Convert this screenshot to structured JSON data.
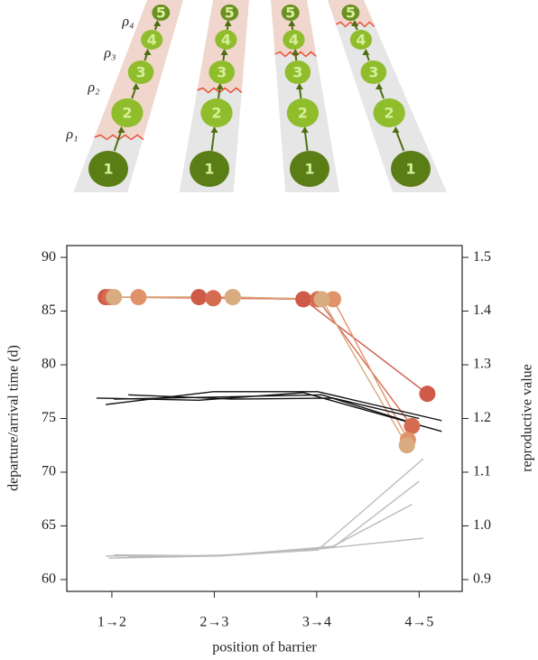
{
  "diagram": {
    "barrier_labels": [
      "ρ₁",
      "ρ₂",
      "ρ₃",
      "ρ₄"
    ],
    "node_labels": [
      "1",
      "2",
      "3",
      "4",
      "5"
    ]
  },
  "chart_data": {
    "type": "line",
    "xlabel": "position of barrier",
    "ylabel": "departure/arrival time (d)",
    "y2label": "reproductive value",
    "xlim": [
      0.56,
      4.42
    ],
    "xticks": [
      {
        "value": 1,
        "label": "1→2"
      },
      {
        "value": 2,
        "label": "2→3"
      },
      {
        "value": 3,
        "label": "3→4"
      },
      {
        "value": 4,
        "label": "4→5"
      }
    ],
    "ylim": [
      58.9,
      91.1
    ],
    "yticks": [
      60,
      65,
      70,
      75,
      80,
      85,
      90
    ],
    "y2lim": [
      0.878,
      1.522
    ],
    "y2ticks": [
      0.9,
      {
        "value": 1,
        "label": "1.0"
      },
      1.1,
      1.2,
      1.3,
      1.4,
      1.5
    ],
    "series": [
      {
        "color": "#cf5a47",
        "markers": true,
        "x": [
          0.94,
          1.85,
          2.87,
          4.08
        ],
        "values": [
          86.3,
          86.3,
          86.1,
          77.3
        ]
      },
      {
        "color": "#d56c52",
        "markers": true,
        "x": [
          0.98,
          1.99,
          3.01,
          3.93
        ],
        "values": [
          86.3,
          86.2,
          86.1,
          74.3
        ]
      },
      {
        "color": "#e09268",
        "markers": true,
        "x": [
          1.26,
          2.18,
          3.16,
          3.89
        ],
        "values": [
          86.3,
          86.3,
          86.1,
          73.0
        ]
      },
      {
        "color": "#d9ab80",
        "markers": true,
        "x": [
          1.02,
          2.18,
          3.05,
          3.88
        ],
        "values": [
          86.3,
          86.3,
          86.1,
          72.5
        ]
      },
      {
        "color": "#111111",
        "markers": false,
        "x": [
          0.85,
          1.85,
          2.87,
          4.22
        ],
        "values": [
          76.9,
          76.7,
          77.4,
          73.8
        ]
      },
      {
        "color": "#111111",
        "markers": false,
        "x": [
          0.94,
          1.99,
          3.01,
          4.22
        ],
        "values": [
          76.3,
          77.5,
          77.5,
          74.8
        ]
      },
      {
        "color": "#111111",
        "markers": false,
        "x": [
          1.16,
          2.18,
          3.16,
          4.0
        ],
        "values": [
          77.2,
          76.8,
          76.9,
          75.0
        ]
      },
      {
        "color": "#111111",
        "markers": false,
        "x": [
          1.02,
          2.05,
          3.05,
          3.93
        ],
        "values": [
          76.8,
          77.0,
          77.2,
          74.6
        ]
      },
      {
        "color": "#bbbbbb",
        "markers": false,
        "axis": "y2",
        "x": [
          0.97,
          2.05,
          3.01,
          4.04
        ],
        "values": [
          0.94,
          0.944,
          0.955,
          1.125
        ]
      },
      {
        "color": "#bbbbbb",
        "markers": false,
        "axis": "y2",
        "x": [
          0.94,
          1.99,
          3.16,
          4.0
        ],
        "values": [
          0.944,
          0.944,
          0.96,
          1.083
        ]
      },
      {
        "color": "#bbbbbb",
        "markers": false,
        "axis": "y2",
        "x": [
          1.02,
          2.05,
          3.16,
          3.93
        ],
        "values": [
          0.946,
          0.944,
          0.962,
          1.04
        ]
      },
      {
        "color": "#bbbbbb",
        "markers": false,
        "axis": "y2",
        "x": [
          1.16,
          2.18,
          2.87,
          4.04
        ],
        "values": [
          0.942,
          0.946,
          0.954,
          0.977
        ]
      }
    ]
  }
}
